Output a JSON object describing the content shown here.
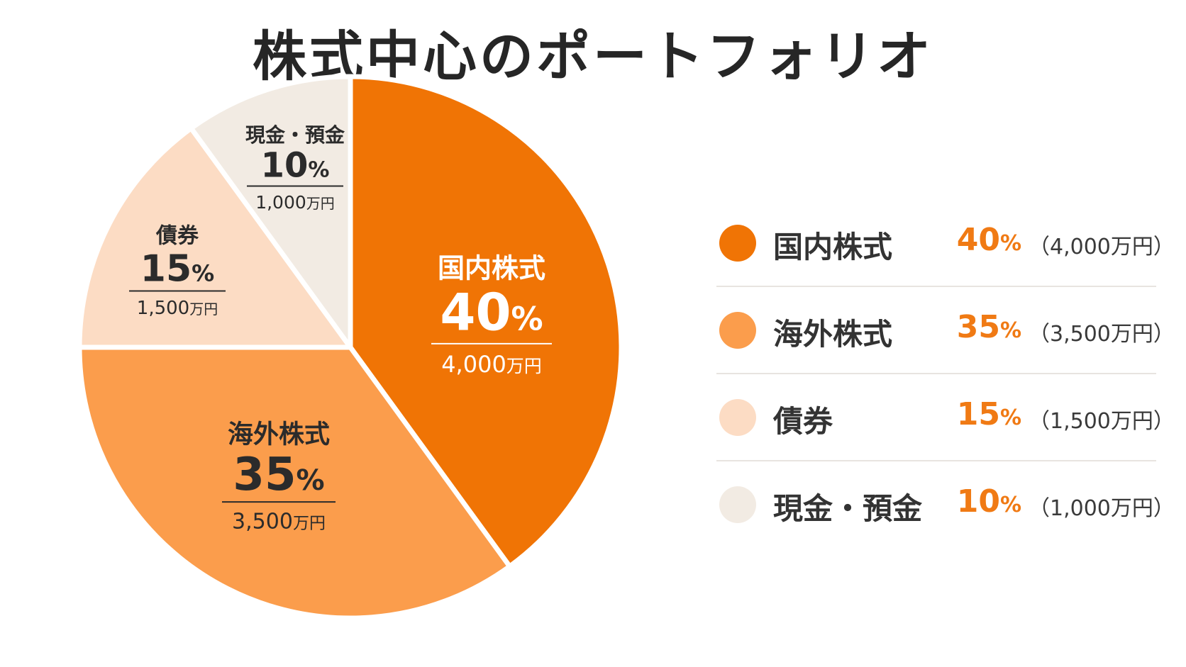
{
  "title": "株式中心のポートフォリオ",
  "colors": {
    "domestic": "#f07405",
    "foreign": "#fb9d4c",
    "bonds": "#fcdcc4",
    "cash": "#f2ebe3",
    "accent": "#f07a14",
    "separator": "#ffffff"
  },
  "chart_data": {
    "type": "pie",
    "title": "株式中心のポートフォリオ",
    "unit": "%",
    "amount_unit": "万円",
    "slices": [
      {
        "name": "国内株式",
        "value": 40,
        "percent_label": "40",
        "amount_label": "4,000",
        "color": "#f07405",
        "text_color": "#ffffff"
      },
      {
        "name": "海外株式",
        "value": 35,
        "percent_label": "35",
        "amount_label": "3,500",
        "color": "#fb9d4c",
        "text_color": "#2b2b2b"
      },
      {
        "name": "債券",
        "value": 15,
        "percent_label": "15",
        "amount_label": "1,500",
        "color": "#fcdcc4",
        "text_color": "#2b2b2b"
      },
      {
        "name": "現金・預金",
        "value": 10,
        "percent_label": "10",
        "amount_label": "1,000",
        "color": "#f2ebe3",
        "text_color": "#2b2b2b"
      }
    ]
  },
  "legend": [
    {
      "name": "国内株式",
      "percent": "40",
      "percent_sign": "%",
      "amount": "（4,000万円）",
      "color": "#f07405"
    },
    {
      "name": "海外株式",
      "percent": "35",
      "percent_sign": "%",
      "amount": "（3,500万円）",
      "color": "#fb9d4c"
    },
    {
      "name": "債券",
      "percent": "15",
      "percent_sign": "%",
      "amount": "（1,500万円）",
      "color": "#fcdcc4"
    },
    {
      "name": "現金・預金",
      "percent": "10",
      "percent_sign": "%",
      "amount": "（1,000万円）",
      "color": "#f2ebe3"
    }
  ]
}
